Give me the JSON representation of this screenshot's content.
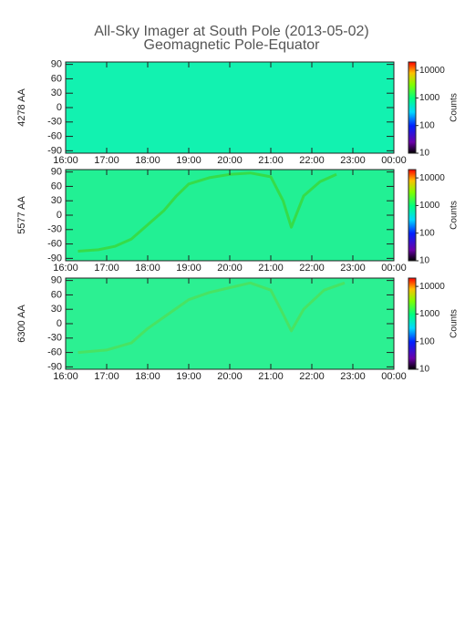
{
  "header": {
    "title": "All-Sky Imager at South Pole (2013-05-02)",
    "subtitle": "Geomagnetic Pole-Equator"
  },
  "chart_data": [
    {
      "type": "heatmap",
      "ylabel": "4278 AA",
      "fill_color": "#12f2b0",
      "xlim": [
        16,
        24
      ],
      "xticks": [
        {
          "value": 16,
          "label": "16:00"
        },
        {
          "value": 17,
          "label": "17:00"
        },
        {
          "value": 18,
          "label": "18:00"
        },
        {
          "value": 19,
          "label": "19:00"
        },
        {
          "value": 20,
          "label": "20:00"
        },
        {
          "value": 21,
          "label": "21:00"
        },
        {
          "value": 22,
          "label": "22:00"
        },
        {
          "value": 23,
          "label": "23:00"
        },
        {
          "value": 24,
          "label": "00:00"
        }
      ],
      "ylim": [
        -95,
        95
      ],
      "yticks": [
        -90,
        -60,
        -30,
        0,
        30,
        60,
        90
      ],
      "colorbar": {
        "label": "Counts",
        "scale": "log",
        "lim": [
          10,
          20000
        ],
        "ticks": [
          10,
          100,
          1000,
          10000
        ]
      },
      "series": []
    },
    {
      "type": "heatmap",
      "ylabel": "5577 AA",
      "fill_color": "#22f094",
      "xlim": [
        16,
        24
      ],
      "xticks": [
        {
          "value": 16,
          "label": "16:00"
        },
        {
          "value": 17,
          "label": "17:00"
        },
        {
          "value": 18,
          "label": "18:00"
        },
        {
          "value": 19,
          "label": "19:00"
        },
        {
          "value": 20,
          "label": "20:00"
        },
        {
          "value": 21,
          "label": "21:00"
        },
        {
          "value": 22,
          "label": "22:00"
        },
        {
          "value": 23,
          "label": "23:00"
        },
        {
          "value": 24,
          "label": "00:00"
        }
      ],
      "ylim": [
        -95,
        95
      ],
      "yticks": [
        -90,
        -60,
        -30,
        0,
        30,
        60,
        90
      ],
      "colorbar": {
        "label": "Counts",
        "scale": "log",
        "lim": [
          10,
          20000
        ],
        "ticks": [
          10,
          100,
          1000,
          10000
        ]
      },
      "series": [
        {
          "color": "#3ad83c",
          "x": [
            16.3,
            16.8,
            17.2,
            17.6,
            18.0,
            18.4,
            18.7,
            19.0,
            19.5,
            20.0,
            20.5,
            21.0,
            21.3,
            21.5,
            21.8,
            22.2,
            22.6
          ],
          "values": [
            -75,
            -72,
            -65,
            -50,
            -20,
            10,
            40,
            65,
            78,
            85,
            88,
            80,
            30,
            -25,
            40,
            70,
            85
          ]
        }
      ]
    },
    {
      "type": "heatmap",
      "ylabel": "6300 AA",
      "fill_color": "#2cf092",
      "xlim": [
        16,
        24
      ],
      "xticks": [
        {
          "value": 16,
          "label": "16:00"
        },
        {
          "value": 17,
          "label": "17:00"
        },
        {
          "value": 18,
          "label": "18:00"
        },
        {
          "value": 19,
          "label": "19:00"
        },
        {
          "value": 20,
          "label": "20:00"
        },
        {
          "value": 21,
          "label": "21:00"
        },
        {
          "value": 22,
          "label": "22:00"
        },
        {
          "value": 23,
          "label": "23:00"
        },
        {
          "value": 24,
          "label": "00:00"
        }
      ],
      "ylim": [
        -95,
        95
      ],
      "yticks": [
        -90,
        -60,
        -30,
        0,
        30,
        60,
        90
      ],
      "colorbar": {
        "label": "Counts",
        "scale": "log",
        "lim": [
          10,
          20000
        ],
        "ticks": [
          10,
          100,
          1000,
          10000
        ]
      },
      "series": [
        {
          "color": "#4ee05a",
          "x": [
            16.3,
            17.0,
            17.6,
            18.0,
            18.5,
            19.0,
            19.5,
            20.0,
            20.5,
            21.0,
            21.3,
            21.5,
            21.8,
            22.3,
            22.8
          ],
          "values": [
            -60,
            -55,
            -40,
            -10,
            20,
            50,
            65,
            75,
            85,
            70,
            20,
            -15,
            30,
            70,
            85
          ]
        }
      ]
    }
  ]
}
